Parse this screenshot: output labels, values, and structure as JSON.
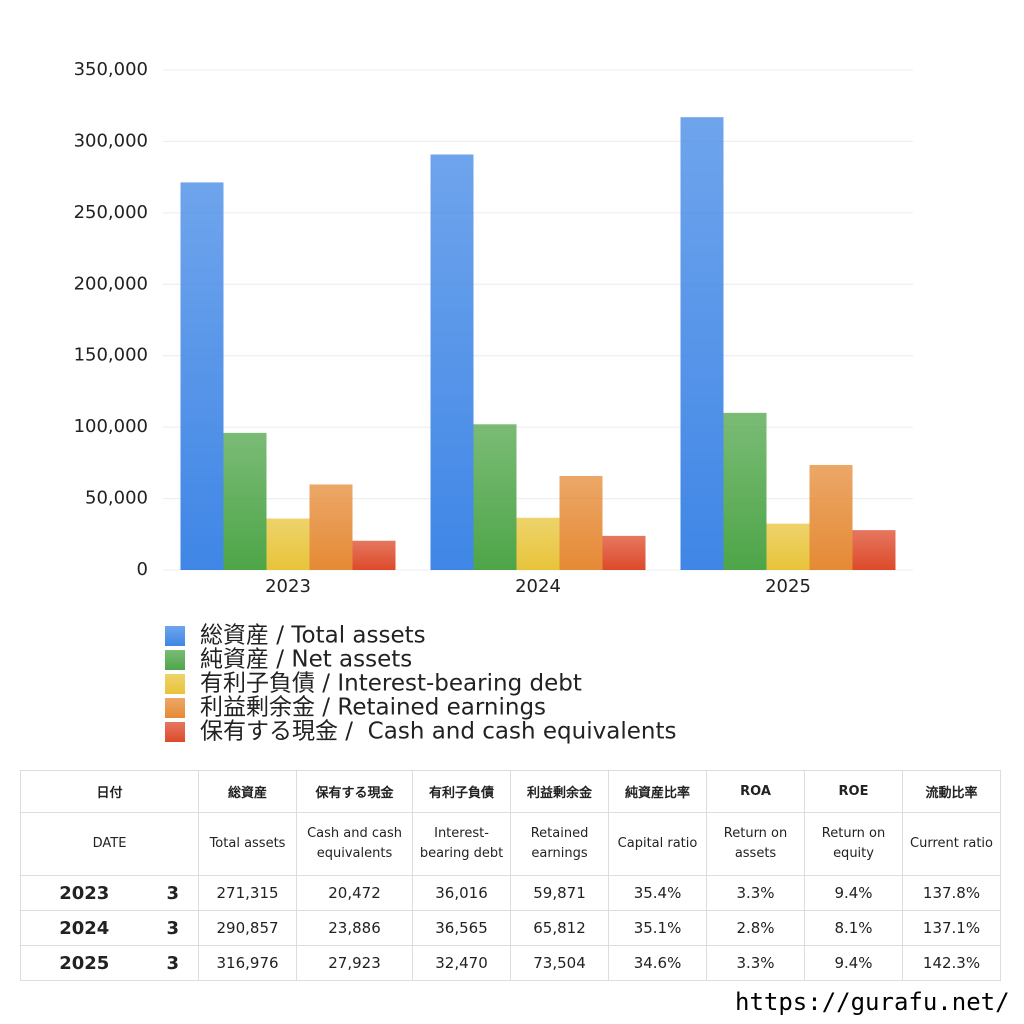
{
  "chart_data": {
    "type": "bar",
    "categories": [
      "2023",
      "2024",
      "2025"
    ],
    "series": [
      {
        "name": "総資産 / Total assets",
        "color": "#3f86e6",
        "values": [
          271315,
          290857,
          316976
        ]
      },
      {
        "name": "純資産 / Net assets",
        "color": "#4ea548",
        "values": [
          96000,
          102000,
          110000
        ]
      },
      {
        "name": "有利子負債 / Interest-bearing debt",
        "color": "#e8c43a",
        "values": [
          36016,
          36565,
          32470
        ]
      },
      {
        "name": "利益剰余金 / Retained earnings",
        "color": "#e58a35",
        "values": [
          59871,
          65812,
          73504
        ]
      },
      {
        "name": "保有する現金 /  Cash and cash equivalents",
        "color": "#dd4a2a",
        "values": [
          20472,
          23886,
          27923
        ]
      }
    ],
    "ylim": [
      0,
      350000
    ],
    "yticks": [
      0,
      {
        "value": 50000,
        "label": "50,000"
      },
      {
        "value": 100000,
        "label": "100,000"
      },
      {
        "value": 150000,
        "label": "150,000"
      },
      {
        "value": 200000,
        "label": "200,000"
      },
      {
        "value": 250000,
        "label": "250,000"
      },
      {
        "value": 300000,
        "label": "300,000"
      },
      {
        "value": 350000,
        "label": "350,000"
      }
    ],
    "grid": true
  },
  "table": {
    "header_ja": [
      "日付",
      "総資産",
      "保有する現金",
      "有利子負債",
      "利益剰余金",
      "純資産比率",
      "ROA",
      "ROE",
      "流動比率"
    ],
    "header_en": [
      "DATE",
      "Total assets",
      "Cash and cash equivalents",
      "Interest-bearing debt",
      "Retained earnings",
      "Capital ratio",
      "Return on assets",
      "Return on equity",
      "Current ratio"
    ],
    "rows": [
      [
        "2023",
        "3",
        "271,315",
        "20,472",
        "36,016",
        "59,871",
        "35.4%",
        "3.3%",
        "9.4%",
        "137.8%"
      ],
      [
        "2024",
        "3",
        "290,857",
        "23,886",
        "36,565",
        "65,812",
        "35.1%",
        "2.8%",
        "8.1%",
        "137.1%"
      ],
      [
        "2025",
        "3",
        "316,976",
        "27,923",
        "32,470",
        "73,504",
        "34.6%",
        "3.3%",
        "9.4%",
        "142.3%"
      ]
    ]
  },
  "footer": "https://gurafu.net/"
}
